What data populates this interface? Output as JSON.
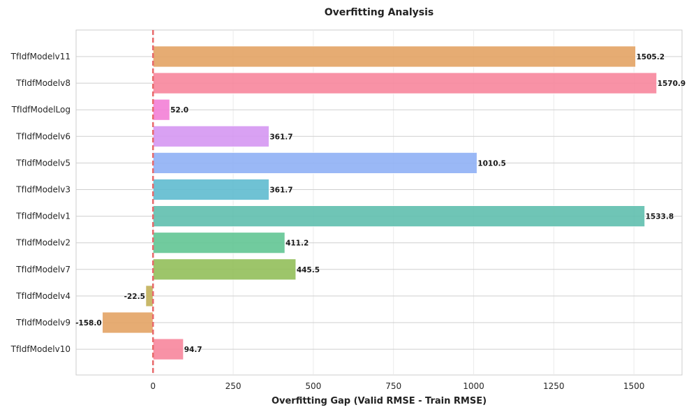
{
  "chart_data": {
    "type": "bar",
    "orientation": "horizontal",
    "title": "Overfitting Analysis",
    "xlabel": "Overfitting Gap (Valid RMSE - Train RMSE)",
    "ylabel": "",
    "xlim": [
      -240,
      1650
    ],
    "xticks": [
      0,
      250,
      500,
      750,
      1000,
      1250,
      1500
    ],
    "grid": true,
    "reference_line": {
      "x": 0,
      "style": "dashed",
      "color": "#e8696b"
    },
    "categories": [
      "TfIdfModelv11",
      "TfIdfModelv8",
      "TfIdfModelLog",
      "TfIdfModelv6",
      "TfIdfModelv5",
      "TfIdfModelv3",
      "TfIdfModelv1",
      "TfIdfModelv2",
      "TfIdfModelv7",
      "TfIdfModelv4",
      "TfIdfModelv9",
      "TfIdfModelv10"
    ],
    "values": [
      1505.2,
      1570.9,
      52.0,
      361.7,
      1010.5,
      361.7,
      1533.8,
      411.2,
      445.5,
      -22.5,
      -158.0,
      94.7
    ],
    "value_labels": [
      "1505.2",
      "1570.9",
      "52.0",
      "361.7",
      "1010.5",
      "361.7",
      "1533.8",
      "411.2",
      "445.5",
      "-22.5",
      "-158.0",
      "94.7"
    ],
    "colors": [
      "#e3a364",
      "#f7869c",
      "#f37fd6",
      "#d597f2",
      "#8fb0f5",
      "#5fbbcf",
      "#5fbfae",
      "#62c594",
      "#92bf5a",
      "#c2b059",
      "#e3a364",
      "#f7869c"
    ]
  }
}
